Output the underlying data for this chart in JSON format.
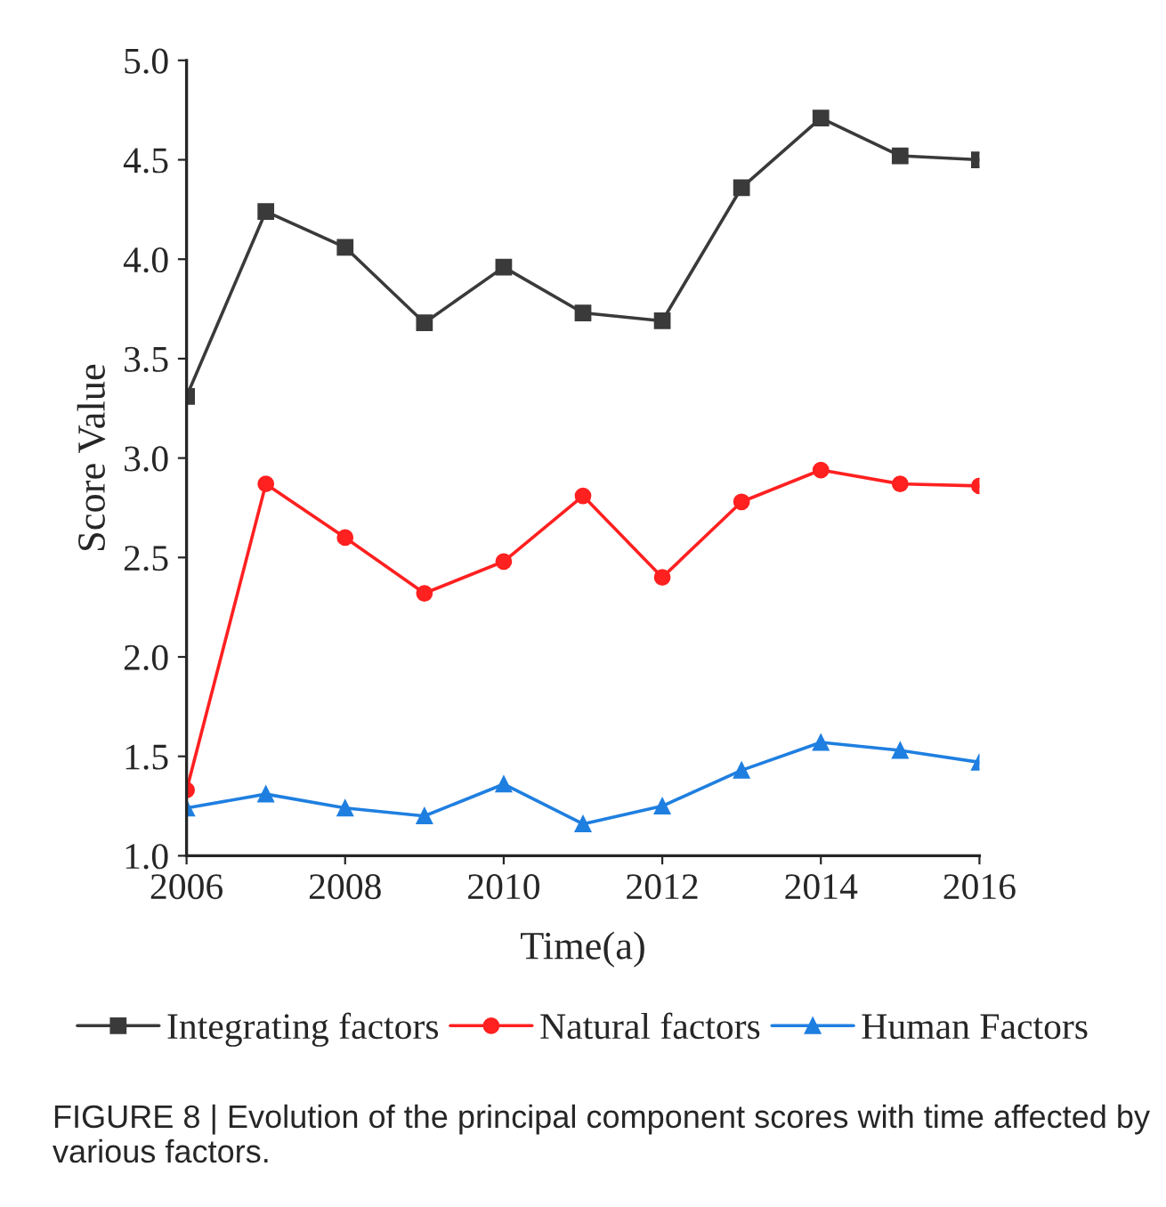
{
  "chart_data": {
    "type": "line",
    "xlabel": "Time(a)",
    "ylabel": "Score Value",
    "x": [
      2006,
      2007,
      2008,
      2009,
      2010,
      2011,
      2012,
      2013,
      2014,
      2015,
      2016
    ],
    "series": [
      {
        "name": "Integrating factors",
        "color": "#3a3a3a",
        "marker": "square",
        "values": [
          3.31,
          4.24,
          4.06,
          3.68,
          3.96,
          3.73,
          3.69,
          4.36,
          4.71,
          4.52,
          4.5
        ]
      },
      {
        "name": "Natural factors",
        "color": "#ff2020",
        "marker": "circle",
        "values": [
          1.33,
          2.87,
          2.6,
          2.32,
          2.48,
          2.81,
          2.4,
          2.78,
          2.94,
          2.87,
          2.86
        ]
      },
      {
        "name": "Human Factors",
        "color": "#1f7fe0",
        "marker": "triangle",
        "values": [
          1.24,
          1.31,
          1.24,
          1.2,
          1.36,
          1.16,
          1.25,
          1.43,
          1.57,
          1.53,
          1.47
        ]
      }
    ],
    "xlim": [
      2006,
      2016
    ],
    "xticks": [
      2006,
      2008,
      2010,
      2012,
      2014,
      2016
    ],
    "ylim": [
      1.0,
      5.0
    ],
    "yticks": [
      {
        "value": 1.0,
        "label": "1.0"
      },
      {
        "value": 1.5,
        "label": "1.5"
      },
      {
        "value": 2.0,
        "label": "2.0"
      },
      {
        "value": 2.5,
        "label": "2.5"
      },
      {
        "value": 3.0,
        "label": "3.0"
      },
      {
        "value": 3.5,
        "label": "3.5"
      },
      {
        "value": 4.0,
        "label": "4.0"
      },
      {
        "value": 4.5,
        "label": "4.5"
      },
      {
        "value": 5.0,
        "label": "5.0"
      }
    ],
    "legend": "bottom",
    "grid": false,
    "line_style": "solid",
    "annotations": [
      "FIGURE 8 | Evolution of the principal component scores with time affected by various factors."
    ]
  }
}
